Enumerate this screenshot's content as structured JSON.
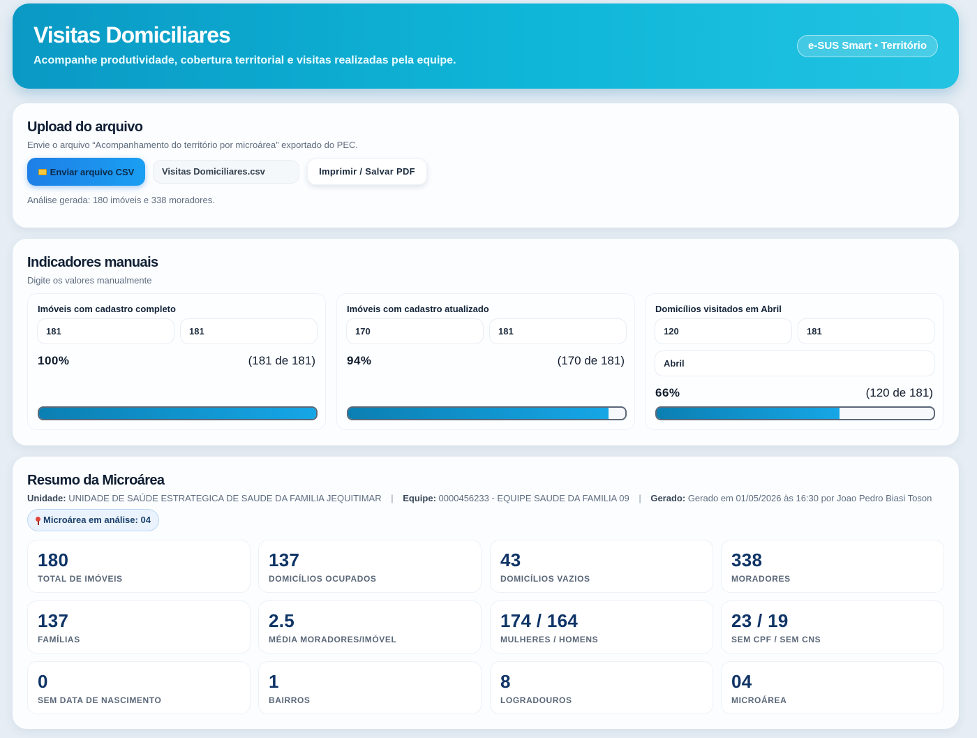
{
  "header": {
    "title": "Visitas Domiciliares",
    "subtitle": "Acompanhe produtividade, cobertura territorial e visitas realizadas pela equipe.",
    "badge": "e-SUS Smart • Território"
  },
  "upload": {
    "title": "Upload do arquivo",
    "description": "Envie o arquivo “Acompanhamento do território por microárea” exportado do PEC.",
    "upload_button": "Enviar arquivo CSV",
    "file_name": "Visitas Domiciliares.csv",
    "print_button": "Imprimir / Salvar PDF",
    "analysis_text": "Análise gerada: 180 imóveis e 338 moradores."
  },
  "indicators": {
    "title": "Indicadores manuais",
    "subtitle": "Digite os valores manualmente",
    "items": [
      {
        "title": "Imóveis com cadastro completo",
        "value_a": "181",
        "value_b": "181",
        "percent": "100%",
        "count": "(181 de 181)",
        "fill": 1.0
      },
      {
        "title": "Imóveis com cadastro atualizado",
        "value_a": "170",
        "value_b": "181",
        "percent": "94%",
        "count": "(170 de 181)",
        "fill": 0.94
      },
      {
        "title": "Domicílios visitados em Abril",
        "value_a": "120",
        "value_b": "181",
        "month": "Abril",
        "percent": "66%",
        "count": "(120 de 181)",
        "fill": 0.66
      }
    ]
  },
  "summary": {
    "title": "Resumo da Microárea",
    "unit_label": "Unidade:",
    "unit_value": "UNIDADE DE SAÚDE ESTRATEGICA DE SAUDE DA FAMILIA JEQUITIMAR",
    "team_label": "Equipe:",
    "team_value": "0000456233 - EQUIPE SAUDE DA FAMILIA 09",
    "generated_label": "Gerado:",
    "generated_value": "Gerado em 01/05/2026 às 16:30 por Joao Pedro Biasi Toson",
    "separator": "|",
    "micro_badge": "Microárea em análise: 04",
    "stats": [
      {
        "value": "180",
        "label": "Total de imóveis"
      },
      {
        "value": "137",
        "label": "Domicílios ocupados"
      },
      {
        "value": "43",
        "label": "Domicílios vazios"
      },
      {
        "value": "338",
        "label": "Moradores"
      },
      {
        "value": "137",
        "label": "Famílias"
      },
      {
        "value": "2.5",
        "label": "Média moradores/imóvel"
      },
      {
        "value": "174 / 164",
        "label": "Mulheres / Homens"
      },
      {
        "value": "23 / 19",
        "label": "Sem CPF / Sem CNS"
      },
      {
        "value": "0",
        "label": "Sem data de nascimento"
      },
      {
        "value": "1",
        "label": "Bairros"
      },
      {
        "value": "8",
        "label": "Logradouros"
      },
      {
        "value": "04",
        "label": "Microárea"
      }
    ]
  }
}
